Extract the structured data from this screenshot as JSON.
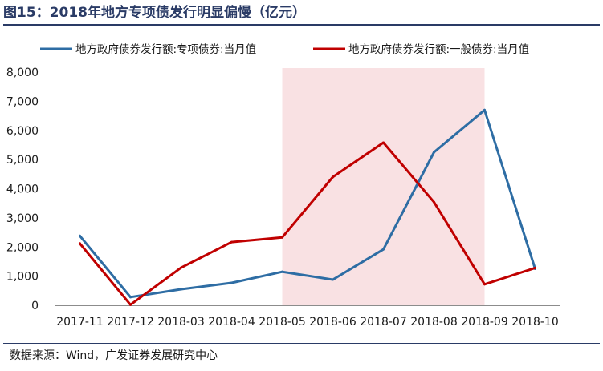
{
  "figure": {
    "title": "图15：2018年地方专项债发行明显偏慢（亿元）",
    "source": "数据来源：Wind，广发证券发展研究中心"
  },
  "chart_data": {
    "type": "line",
    "categories": [
      "2017-11",
      "2017-12",
      "2018-03",
      "2018-04",
      "2018-05",
      "2018-06",
      "2018-07",
      "2018-08",
      "2018-09",
      "2018-10"
    ],
    "series": [
      {
        "name": "地方政府债券发行额:专项债券:当月值",
        "color": "#2e6da4",
        "values": [
          2380,
          280,
          550,
          770,
          1150,
          880,
          1920,
          5250,
          6700,
          1250
        ]
      },
      {
        "name": "地方政府债券发行额:一般债券:当月值",
        "color": "#c00000",
        "values": [
          2120,
          20,
          1290,
          2170,
          2330,
          4400,
          5580,
          3540,
          720,
          1280
        ]
      }
    ],
    "y_ticks": [
      "0",
      "1,000",
      "2,000",
      "3,000",
      "4,000",
      "5,000",
      "6,000",
      "7,000",
      "8,000"
    ],
    "ylim": [
      0,
      8000
    ],
    "highlight_band": {
      "from": "2018-05",
      "to": "2018-09",
      "color": "#f9e1e3"
    },
    "grid": false,
    "legend": "top"
  }
}
